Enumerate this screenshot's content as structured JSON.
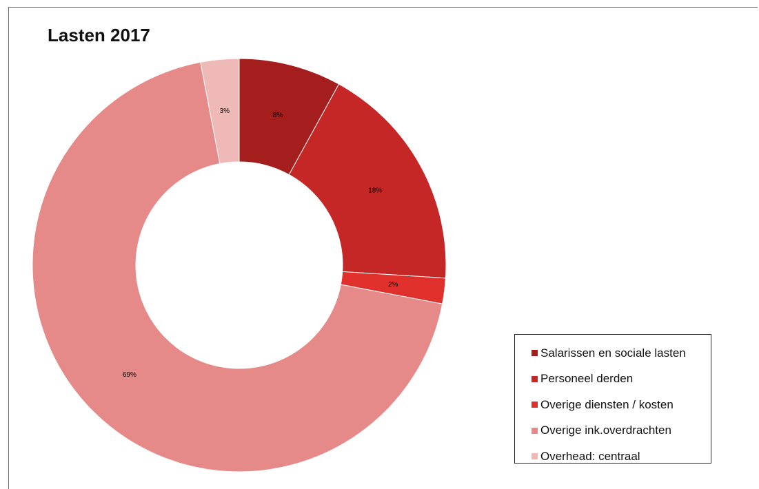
{
  "chart_data": {
    "type": "pie",
    "title": "Lasten 2017",
    "donut": true,
    "legend_position": "bottom-right",
    "slices": [
      {
        "name": "Salarissen en sociale lasten",
        "value": 8,
        "label": "8%",
        "color": "#a41e1e"
      },
      {
        "name": "Personeel derden",
        "value": 18,
        "label": "18%",
        "color": "#c42726"
      },
      {
        "name": "Overige diensten / kosten",
        "value": 2,
        "label": "2%",
        "color": "#e0302c"
      },
      {
        "name": "Overige ink.overdrachten",
        "value": 69,
        "label": "69%",
        "color": "#e68a89"
      },
      {
        "name": "Overhead: centraal",
        "value": 3,
        "label": "3%",
        "color": "#efb9b8"
      }
    ]
  }
}
